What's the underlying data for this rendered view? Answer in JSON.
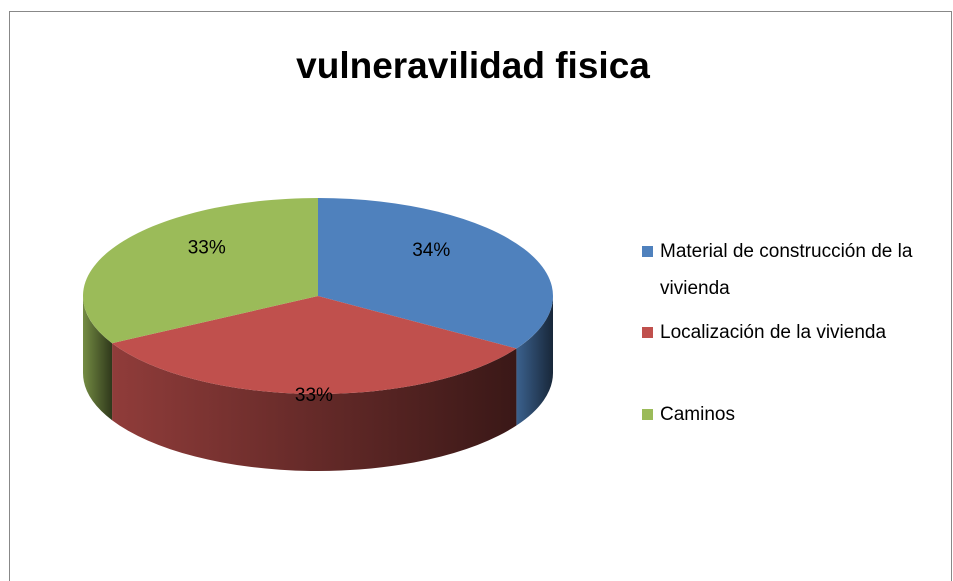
{
  "chart_data": {
    "type": "pie",
    "title": "vulneravilidad fisica",
    "categories": [
      "Material de construcción de la vivienda",
      "Localización de la vivienda",
      "Caminos"
    ],
    "values": [
      34,
      33,
      33
    ],
    "value_labels": [
      "34%",
      "33%",
      "33%"
    ],
    "colors": [
      "#4f81bd",
      "#c0504d",
      "#9bbb59"
    ],
    "legend": "right"
  }
}
